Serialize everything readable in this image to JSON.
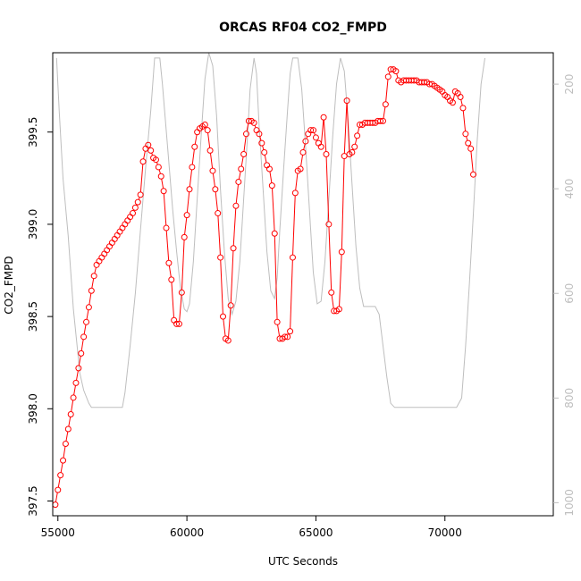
{
  "chart_data": {
    "type": "line",
    "title": "ORCAS RF04 CO2_FMPD",
    "xlabel": "UTC Seconds",
    "ylabel": "CO2_FMPD",
    "xlim": [
      54800,
      74200
    ],
    "ylim": [
      397.42,
      399.93
    ],
    "x_ticks": [
      "55000",
      "60000",
      "65000",
      "70000"
    ],
    "y_ticks": [
      "397.5",
      "398.0",
      "398.5",
      "399.0",
      "399.5"
    ],
    "right_axis": {
      "ticks": [
        "200",
        "400",
        "600",
        "800",
        "1000"
      ],
      "lim": [
        1025,
        140
      ],
      "color": "#bebebe"
    },
    "colors": {
      "co2": "#ff0000",
      "pressure": "#bebebe",
      "axis": "#000000"
    },
    "series": [
      {
        "values": [
          [
            54900,
            397.48
          ],
          [
            55000,
            397.56
          ],
          [
            55100,
            397.64
          ],
          [
            55200,
            397.72
          ],
          [
            55300,
            397.81
          ],
          [
            55400,
            397.89
          ],
          [
            55500,
            397.97
          ],
          [
            55600,
            398.06
          ],
          [
            55700,
            398.14
          ],
          [
            55800,
            398.22
          ],
          [
            55900,
            398.3
          ],
          [
            56000,
            398.39
          ],
          [
            56100,
            398.47
          ],
          [
            56200,
            398.55
          ],
          [
            56300,
            398.64
          ],
          [
            56400,
            398.72
          ],
          [
            56500,
            398.78
          ],
          [
            56600,
            398.8
          ],
          [
            56700,
            398.82
          ],
          [
            56800,
            398.84
          ],
          [
            56900,
            398.86
          ],
          [
            57000,
            398.88
          ],
          [
            57100,
            398.9
          ],
          [
            57200,
            398.92
          ],
          [
            57300,
            398.94
          ],
          [
            57400,
            398.96
          ],
          [
            57500,
            398.98
          ],
          [
            57600,
            399.0
          ],
          [
            57700,
            399.02
          ],
          [
            57800,
            399.04
          ],
          [
            57900,
            399.06
          ],
          [
            58000,
            399.09
          ],
          [
            58100,
            399.12
          ],
          [
            58200,
            399.16
          ],
          [
            58300,
            399.34
          ],
          [
            58400,
            399.41
          ],
          [
            58500,
            399.43
          ],
          [
            58600,
            399.4
          ],
          [
            58700,
            399.36
          ],
          [
            58800,
            399.35
          ],
          [
            58900,
            399.31
          ],
          [
            59000,
            399.26
          ],
          [
            59100,
            399.18
          ],
          [
            59200,
            398.98
          ],
          [
            59300,
            398.79
          ],
          [
            59400,
            398.7
          ],
          [
            59500,
            398.48
          ],
          [
            59600,
            398.46
          ],
          [
            59700,
            398.46
          ],
          [
            59800,
            398.63
          ],
          [
            59900,
            398.93
          ],
          [
            60000,
            399.05
          ],
          [
            60100,
            399.19
          ],
          [
            60200,
            399.31
          ],
          [
            60300,
            399.42
          ],
          [
            60400,
            399.5
          ],
          [
            60500,
            399.52
          ],
          [
            60600,
            399.53
          ],
          [
            60700,
            399.54
          ],
          [
            60800,
            399.51
          ],
          [
            60900,
            399.4
          ],
          [
            61000,
            399.29
          ],
          [
            61100,
            399.19
          ],
          [
            61200,
            399.06
          ],
          [
            61300,
            398.82
          ],
          [
            61400,
            398.5
          ],
          [
            61500,
            398.38
          ],
          [
            61600,
            398.37
          ],
          [
            61700,
            398.56
          ],
          [
            61800,
            398.87
          ],
          [
            61900,
            399.1
          ],
          [
            62000,
            399.23
          ],
          [
            62100,
            399.3
          ],
          [
            62200,
            399.38
          ],
          [
            62300,
            399.49
          ],
          [
            62400,
            399.56
          ],
          [
            62500,
            399.56
          ],
          [
            62600,
            399.55
          ],
          [
            62700,
            399.51
          ],
          [
            62800,
            399.49
          ],
          [
            62900,
            399.44
          ],
          [
            63000,
            399.39
          ],
          [
            63100,
            399.32
          ],
          [
            63200,
            399.3
          ],
          [
            63300,
            399.21
          ],
          [
            63400,
            398.95
          ],
          [
            63500,
            398.47
          ],
          [
            63600,
            398.38
          ],
          [
            63700,
            398.38
          ],
          [
            63800,
            398.39
          ],
          [
            63900,
            398.39
          ],
          [
            64000,
            398.42
          ],
          [
            64100,
            398.82
          ],
          [
            64200,
            399.17
          ],
          [
            64300,
            399.29
          ],
          [
            64400,
            399.3
          ],
          [
            64500,
            399.39
          ],
          [
            64600,
            399.45
          ],
          [
            64700,
            399.49
          ],
          [
            64800,
            399.51
          ],
          [
            64900,
            399.51
          ],
          [
            65000,
            399.47
          ],
          [
            65100,
            399.44
          ],
          [
            65200,
            399.42
          ],
          [
            65300,
            399.58
          ],
          [
            65400,
            399.38
          ],
          [
            65500,
            399.0
          ],
          [
            65600,
            398.63
          ],
          [
            65700,
            398.53
          ],
          [
            65800,
            398.53
          ],
          [
            65900,
            398.54
          ],
          [
            66000,
            398.85
          ],
          [
            66100,
            399.37
          ],
          [
            66200,
            399.67
          ],
          [
            66300,
            399.38
          ],
          [
            66400,
            399.39
          ],
          [
            66500,
            399.42
          ],
          [
            66600,
            399.48
          ],
          [
            66700,
            399.54
          ],
          [
            66800,
            399.54
          ],
          [
            66900,
            399.55
          ],
          [
            67000,
            399.55
          ],
          [
            67100,
            399.55
          ],
          [
            67200,
            399.55
          ],
          [
            67300,
            399.55
          ],
          [
            67400,
            399.56
          ],
          [
            67500,
            399.56
          ],
          [
            67600,
            399.56
          ],
          [
            67700,
            399.65
          ],
          [
            67800,
            399.8
          ],
          [
            67900,
            399.84
          ],
          [
            68000,
            399.84
          ],
          [
            68100,
            399.83
          ],
          [
            68200,
            399.78
          ],
          [
            68300,
            399.77
          ],
          [
            68400,
            399.78
          ],
          [
            68500,
            399.78
          ],
          [
            68600,
            399.78
          ],
          [
            68700,
            399.78
          ],
          [
            68800,
            399.78
          ],
          [
            68900,
            399.78
          ],
          [
            69000,
            399.77
          ],
          [
            69100,
            399.77
          ],
          [
            69200,
            399.77
          ],
          [
            69300,
            399.77
          ],
          [
            69400,
            399.76
          ],
          [
            69500,
            399.76
          ],
          [
            69600,
            399.75
          ],
          [
            69700,
            399.74
          ],
          [
            69800,
            399.73
          ],
          [
            69900,
            399.72
          ],
          [
            70000,
            399.7
          ],
          [
            70100,
            399.69
          ],
          [
            70200,
            399.67
          ],
          [
            70300,
            399.66
          ],
          [
            70400,
            399.72
          ],
          [
            70500,
            399.71
          ],
          [
            70600,
            399.69
          ],
          [
            70700,
            399.63
          ],
          [
            70800,
            399.49
          ],
          [
            70900,
            399.44
          ],
          [
            71000,
            399.41
          ],
          [
            71100,
            399.27
          ]
        ]
      },
      {
        "values": [
          [
            54950,
            150
          ],
          [
            55050,
            250
          ],
          [
            55200,
            380
          ],
          [
            55400,
            490
          ],
          [
            55600,
            630
          ],
          [
            55850,
            752
          ],
          [
            56000,
            785
          ],
          [
            56200,
            810
          ],
          [
            56300,
            818
          ],
          [
            56500,
            818
          ],
          [
            56700,
            818
          ],
          [
            56900,
            818
          ],
          [
            57100,
            818
          ],
          [
            57300,
            818
          ],
          [
            57500,
            818
          ],
          [
            57600,
            790
          ],
          [
            57800,
            700
          ],
          [
            58000,
            600
          ],
          [
            58200,
            480
          ],
          [
            58400,
            360
          ],
          [
            58600,
            250
          ],
          [
            58750,
            150
          ],
          [
            58950,
            150
          ],
          [
            59050,
            200
          ],
          [
            59250,
            320
          ],
          [
            59450,
            440
          ],
          [
            59600,
            520
          ],
          [
            59750,
            590
          ],
          [
            59900,
            630
          ],
          [
            60000,
            635
          ],
          [
            60100,
            620
          ],
          [
            60250,
            540
          ],
          [
            60400,
            420
          ],
          [
            60550,
            300
          ],
          [
            60700,
            190
          ],
          [
            60850,
            140
          ],
          [
            61000,
            165
          ],
          [
            61150,
            260
          ],
          [
            61300,
            400
          ],
          [
            61450,
            520
          ],
          [
            61600,
            610
          ],
          [
            61750,
            640
          ],
          [
            61900,
            615
          ],
          [
            62050,
            540
          ],
          [
            62200,
            420
          ],
          [
            62350,
            300
          ],
          [
            62450,
            210
          ],
          [
            62600,
            150
          ],
          [
            62700,
            180
          ],
          [
            62800,
            280
          ],
          [
            62950,
            400
          ],
          [
            63100,
            520
          ],
          [
            63250,
            595
          ],
          [
            63400,
            610
          ],
          [
            63500,
            570
          ],
          [
            63600,
            480
          ],
          [
            63750,
            360
          ],
          [
            63900,
            250
          ],
          [
            64000,
            180
          ],
          [
            64100,
            150
          ],
          [
            64300,
            150
          ],
          [
            64450,
            210
          ],
          [
            64600,
            320
          ],
          [
            64750,
            440
          ],
          [
            64900,
            560
          ],
          [
            65050,
            620
          ],
          [
            65200,
            615
          ],
          [
            65350,
            540
          ],
          [
            65500,
            420
          ],
          [
            65650,
            300
          ],
          [
            65800,
            200
          ],
          [
            65950,
            150
          ],
          [
            66100,
            175
          ],
          [
            66250,
            270
          ],
          [
            66400,
            390
          ],
          [
            66550,
            510
          ],
          [
            66700,
            590
          ],
          [
            66850,
            625
          ],
          [
            67000,
            625
          ],
          [
            67150,
            625
          ],
          [
            67300,
            625
          ],
          [
            67450,
            640
          ],
          [
            67600,
            700
          ],
          [
            67750,
            760
          ],
          [
            67900,
            810
          ],
          [
            68050,
            818
          ],
          [
            68250,
            818
          ],
          [
            68450,
            818
          ],
          [
            68650,
            818
          ],
          [
            68850,
            818
          ],
          [
            69050,
            818
          ],
          [
            69250,
            818
          ],
          [
            69450,
            818
          ],
          [
            69650,
            818
          ],
          [
            69850,
            818
          ],
          [
            70050,
            818
          ],
          [
            70250,
            818
          ],
          [
            70450,
            818
          ],
          [
            70650,
            800
          ],
          [
            70800,
            700
          ],
          [
            70950,
            580
          ],
          [
            71100,
            450
          ],
          [
            71250,
            310
          ],
          [
            71400,
            200
          ],
          [
            71550,
            150
          ]
        ]
      }
    ]
  }
}
